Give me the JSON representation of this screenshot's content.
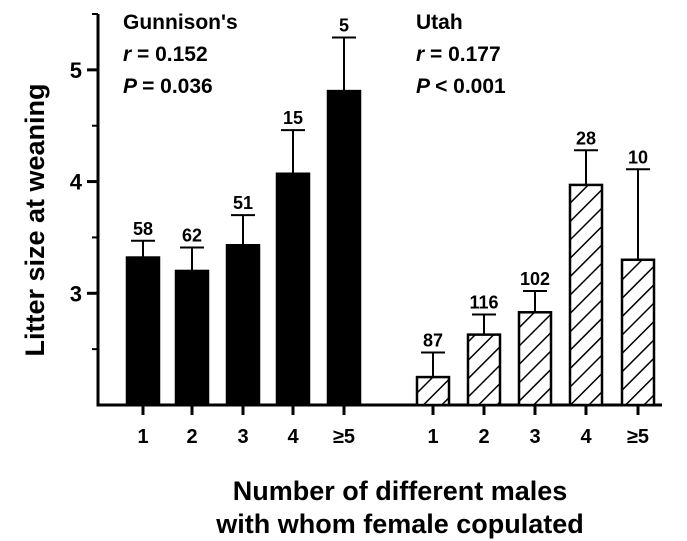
{
  "chart_data": {
    "type": "bar",
    "ylabel": "Litter size at weaning",
    "xlabel_line1": "Number of different males",
    "xlabel_line2": "with whom female copulated",
    "ylim": [
      2,
      5.5
    ],
    "yticks": [
      3,
      4,
      5
    ],
    "categories": [
      "1",
      "2",
      "3",
      "4",
      "≥5"
    ],
    "series": [
      {
        "name": "Gunnison's",
        "pattern": "solid",
        "color": "#000000",
        "values": [
          3.32,
          3.2,
          3.43,
          4.07,
          4.81
        ],
        "error_upper": [
          3.47,
          3.41,
          3.7,
          4.46,
          5.29
        ],
        "n": [
          "58",
          "62",
          "51",
          "15",
          "5"
        ],
        "r_label": "r",
        "r_value": "= 0.152",
        "p_label": "P",
        "p_value": "= 0.036"
      },
      {
        "name": "Utah",
        "pattern": "hatched",
        "color": "#000000",
        "values": [
          2.25,
          2.63,
          2.83,
          3.97,
          3.3
        ],
        "error_upper": [
          2.47,
          2.81,
          3.02,
          4.28,
          4.11
        ],
        "n": [
          "87",
          "116",
          "102",
          "28",
          "10"
        ],
        "r_label": "r",
        "r_value": "= 0.177",
        "p_label": "P",
        "p_value": "< 0.001"
      }
    ]
  }
}
